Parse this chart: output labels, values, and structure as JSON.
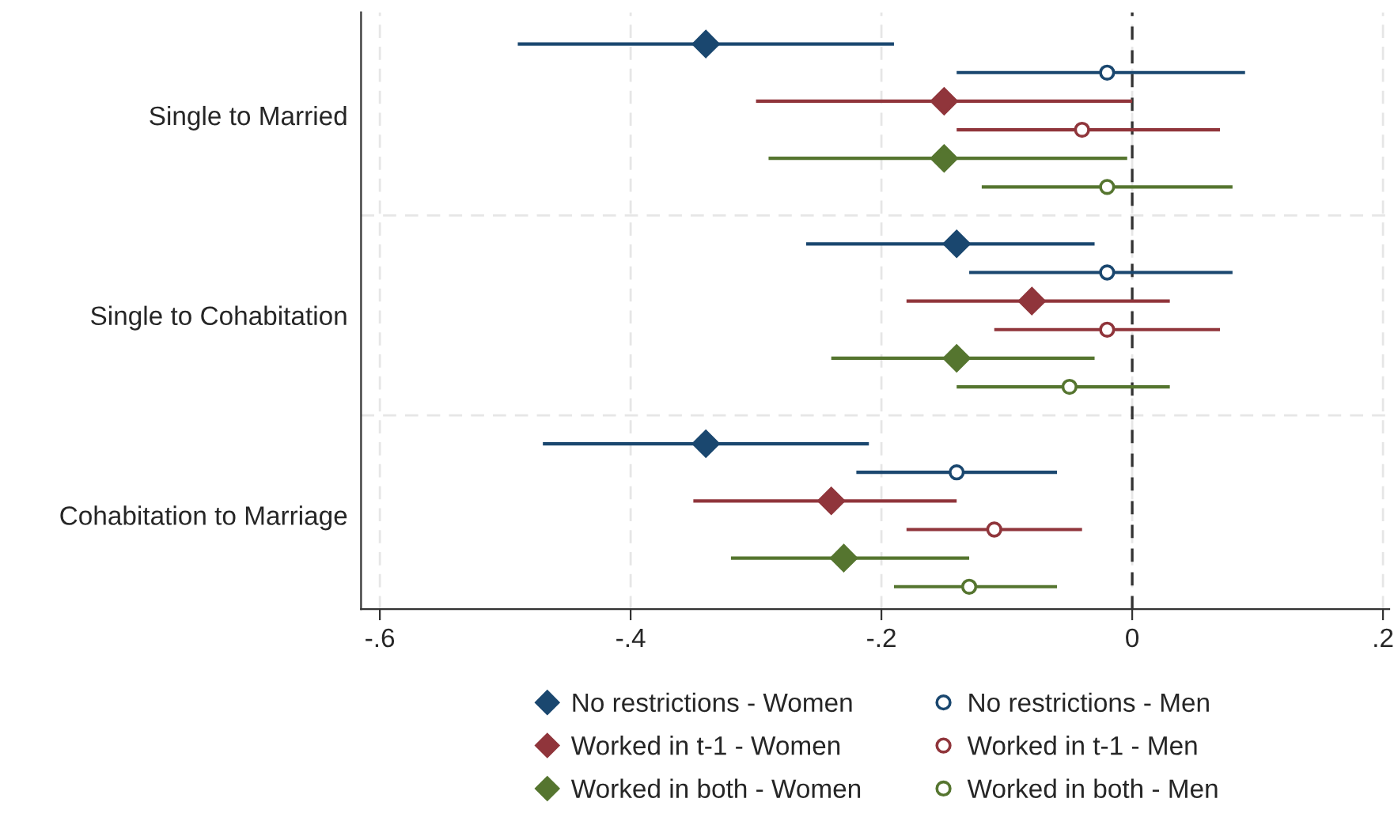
{
  "chart_data": {
    "type": "scatter",
    "orientation": "horizontal",
    "categories": [
      "Single to Married",
      "Single to Cohabitation",
      "Cohabitation to Marriage"
    ],
    "series": [
      {
        "name": "No restrictions - Women",
        "color": "#1a476f",
        "marker": "diamond",
        "values": [
          -0.34,
          -0.14,
          -0.34
        ],
        "errors": [
          [
            -0.49,
            -0.19
          ],
          [
            -0.26,
            -0.03
          ],
          [
            -0.47,
            -0.21
          ]
        ]
      },
      {
        "name": "No restrictions - Men",
        "color": "#1a476f",
        "marker": "circle",
        "values": [
          -0.02,
          -0.02,
          -0.14
        ],
        "errors": [
          [
            -0.14,
            0.09
          ],
          [
            -0.13,
            0.08
          ],
          [
            -0.22,
            -0.06
          ]
        ]
      },
      {
        "name": "Worked in t-1 - Women",
        "color": "#90353b",
        "marker": "diamond",
        "values": [
          -0.15,
          -0.08,
          -0.24
        ],
        "errors": [
          [
            -0.3,
            0.0
          ],
          [
            -0.18,
            0.03
          ],
          [
            -0.35,
            -0.14
          ]
        ]
      },
      {
        "name": "Worked in t-1 - Men",
        "color": "#90353b",
        "marker": "circle",
        "values": [
          -0.04,
          -0.02,
          -0.11
        ],
        "errors": [
          [
            -0.14,
            0.07
          ],
          [
            -0.11,
            0.07
          ],
          [
            -0.18,
            -0.04
          ]
        ]
      },
      {
        "name": "Worked in both - Women",
        "color": "#55752f",
        "marker": "diamond",
        "values": [
          -0.15,
          -0.14,
          -0.23
        ],
        "errors": [
          [
            -0.29,
            -0.004
          ],
          [
            -0.24,
            -0.03
          ],
          [
            -0.32,
            -0.13
          ]
        ]
      },
      {
        "name": "Worked in both - Men",
        "color": "#55752f",
        "marker": "circle",
        "values": [
          -0.02,
          -0.05,
          -0.13
        ],
        "errors": [
          [
            -0.12,
            0.08
          ],
          [
            -0.14,
            0.03
          ],
          [
            -0.19,
            -0.06
          ]
        ]
      }
    ],
    "xlim": [
      -0.615,
      0.205
    ],
    "xticks": [
      {
        "value": -0.6,
        "label": "-.6"
      },
      {
        "value": -0.4,
        "label": "-.4"
      },
      {
        "value": -0.2,
        "label": "-.2"
      },
      0,
      {
        "value": 0.2,
        "label": ".2"
      }
    ],
    "ref_lines": [
      {
        "axis": "x",
        "value": 0,
        "line_style": "dashed",
        "color": "#333333"
      }
    ],
    "grid": true,
    "legend": "bottom"
  }
}
